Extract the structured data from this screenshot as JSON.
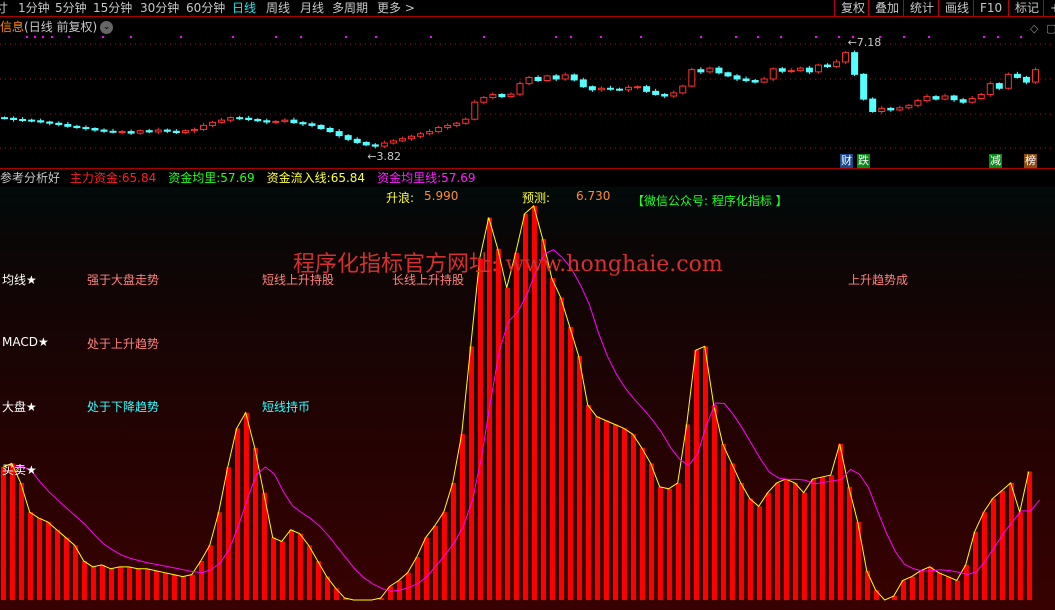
{
  "menu": {
    "items": [
      "寸",
      "1分钟",
      "5分钟",
      "15分钟",
      "30分钟",
      "60分钟",
      "日线",
      "周线",
      "月线",
      "多周期",
      "更多 >"
    ],
    "active_index": 6,
    "right_buttons": [
      "复权",
      "叠加",
      "统计",
      "画线",
      "F10",
      "标记",
      "+"
    ]
  },
  "title": {
    "name": "信息",
    "sub": "(日线 前复权)",
    "chevron_icon": "chevron-down-icon"
  },
  "kline": {
    "closes": [
      4.78,
      4.74,
      4.72,
      4.7,
      4.66,
      4.62,
      4.58,
      4.52,
      4.48,
      4.45,
      4.4,
      4.36,
      4.33,
      4.35,
      4.3,
      4.38,
      4.34,
      4.4,
      4.36,
      4.32,
      4.38,
      4.42,
      4.55,
      4.65,
      4.72,
      4.8,
      4.78,
      4.74,
      4.7,
      4.66,
      4.68,
      4.72,
      4.64,
      4.6,
      4.55,
      4.45,
      4.35,
      4.22,
      4.1,
      4.0,
      3.92,
      3.88,
      3.98,
      4.05,
      4.12,
      4.2,
      4.28,
      4.35,
      4.48,
      4.55,
      4.62,
      4.75,
      5.3,
      5.45,
      5.55,
      5.48,
      5.56,
      5.9,
      6.1,
      6.0,
      6.15,
      6.05,
      6.18,
      6.02,
      5.8,
      5.7,
      5.75,
      5.72,
      5.7,
      5.78,
      5.8,
      5.65,
      5.55,
      5.5,
      5.6,
      5.82,
      6.35,
      6.28,
      6.4,
      6.25,
      6.15,
      6.05,
      6.0,
      5.95,
      6.05,
      6.38,
      6.3,
      6.32,
      6.4,
      6.28,
      6.5,
      6.45,
      6.6,
      6.9,
      6.2,
      5.4,
      5.0,
      5.1,
      5.05,
      5.12,
      5.2,
      5.35,
      5.48,
      5.4,
      5.5,
      5.38,
      5.3,
      5.42,
      5.55,
      5.9,
      5.75,
      6.2,
      6.1,
      5.95,
      6.35
    ],
    "high_label": "7.18",
    "low_label": "3.82",
    "high": 7.18,
    "low": 3.82,
    "up_color": "#ff3030",
    "down_color": "#54ffff",
    "badges": [
      {
        "text": "财",
        "color": "#1a4a8a"
      },
      {
        "text": "跌",
        "color": "#0a8a1a"
      },
      {
        "text": "减",
        "color": "#0a8a1a"
      },
      {
        "text": "榜",
        "color": "#8a4a10"
      }
    ]
  },
  "indicator": {
    "title": "参考分析好",
    "fields": [
      {
        "label": "主力资金:",
        "value": "65.84",
        "color": "#ff2020"
      },
      {
        "label": "资金均里:",
        "value": "57.69",
        "color": "#20ff20"
      },
      {
        "label": "资金流入线:",
        "value": "65.84",
        "color": "#ffff30"
      },
      {
        "label": "资金均里线:",
        "value": "57.69",
        "color": "#ff20ff"
      }
    ],
    "rise_label": "升浪:",
    "rise_value": "5.990",
    "predict_label": "预测:",
    "predict_value": "6.730",
    "wechat": "【微信公众号: 程序化指标 】",
    "watermark": "程序化指标官方网址: www.honghaie.com",
    "rows": [
      {
        "label": "均线★",
        "items": [
          "强于大盘走势",
          "短线上升持股",
          "长线上升持股",
          "上升趋势成"
        ]
      },
      {
        "label": "MACD★",
        "items": [
          "处于上升趋势"
        ]
      },
      {
        "label": "大盘★",
        "items": [
          "处于下降趋势",
          "短线持币"
        ]
      },
      {
        "label": "买卖★",
        "items": []
      }
    ],
    "values": [
      68,
      70,
      60,
      45,
      42,
      40,
      36,
      32,
      28,
      20,
      17,
      18,
      16,
      17,
      17,
      16,
      16,
      15,
      14,
      13,
      12,
      13,
      20,
      28,
      45,
      68,
      88,
      96,
      78,
      55,
      32,
      30,
      36,
      34,
      28,
      20,
      12,
      6,
      1,
      0,
      0,
      0,
      1,
      7,
      10,
      14,
      22,
      32,
      38,
      45,
      60,
      85,
      130,
      175,
      196,
      180,
      160,
      178,
      198,
      202,
      185,
      165,
      155,
      140,
      125,
      100,
      94,
      92,
      90,
      88,
      85,
      78,
      70,
      58,
      57,
      60,
      90,
      128,
      130,
      100,
      80,
      70,
      60,
      52,
      48,
      55,
      60,
      62,
      60,
      55,
      62,
      63,
      64,
      80,
      58,
      40,
      15,
      5,
      0,
      2,
      10,
      12,
      15,
      17,
      14,
      12,
      10,
      18,
      35,
      45,
      52,
      56,
      60,
      45,
      65.84
    ],
    "ylim": [
      0,
      205
    ],
    "bar_color": "#ff0000",
    "line_color": "#ffff00",
    "avg_color": "#ff00ff"
  }
}
